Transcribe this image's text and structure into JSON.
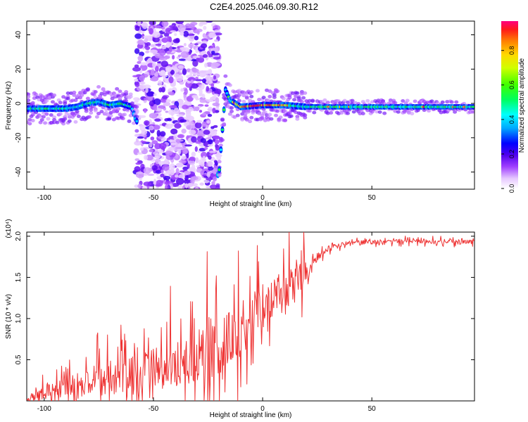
{
  "title": "C2E4.2025.046.09.30.R12",
  "chart_data": [
    {
      "type": "heatmap",
      "title": "C2E4.2025.046.09.30.R12",
      "xlabel": "Height of straight line (km)",
      "ylabel": "Frequency (Hz)",
      "xlim": [
        -108,
        97
      ],
      "ylim": [
        -50,
        48
      ],
      "xticks": [
        -100,
        -50,
        0,
        50
      ],
      "yticks": [
        -40,
        -20,
        0,
        20,
        40
      ],
      "colorbar": {
        "label": "Normalized spectral amplitude",
        "range": [
          0,
          0.97
        ],
        "ticks": [
          0.0,
          0.2,
          0.4,
          0.6,
          0.8
        ]
      },
      "ridge": {
        "x": [
          -108,
          -100,
          -90,
          -85,
          -80,
          -75,
          -70,
          -65,
          -60,
          -58,
          -20,
          -17,
          -15,
          -10,
          0,
          10,
          20,
          50,
          97
        ],
        "y": [
          -3,
          -3,
          -3,
          -2,
          0,
          1,
          -1,
          0,
          -2,
          -10,
          -42,
          8,
          2,
          -2,
          -1,
          -1,
          -2,
          -2,
          -2
        ]
      },
      "noise_band": [
        -58,
        -20
      ]
    },
    {
      "type": "line",
      "xlabel": "Height of straight line (km)",
      "ylabel": "SNR (10 * v/v)",
      "yunit": "(x10⁴)",
      "xlim": [
        -108,
        97
      ],
      "ylim": [
        0,
        2.05
      ],
      "xticks": [
        -100,
        -50,
        0,
        50
      ],
      "yticks": [
        0.5,
        1.0,
        1.5,
        2.0
      ],
      "grid": false,
      "series": [
        {
          "color": "#ee3333",
          "x": [
            -108,
            -100,
            -90,
            -80,
            -70,
            -60,
            -50,
            -40,
            -30,
            -25,
            -20,
            -15,
            -10,
            -5,
            0,
            5,
            10,
            15,
            20,
            25,
            30,
            40,
            50,
            60,
            70,
            80,
            90,
            97
          ],
          "y": [
            0.03,
            0.1,
            0.17,
            0.23,
            0.27,
            0.3,
            0.38,
            0.45,
            0.55,
            0.62,
            0.65,
            0.75,
            0.85,
            1.05,
            1.15,
            1.25,
            1.3,
            1.45,
            1.55,
            1.75,
            1.85,
            1.92,
            1.93,
            1.94,
            1.94,
            1.94,
            1.93,
            1.93
          ],
          "spread": [
            0.05,
            0.12,
            0.18,
            0.25,
            0.3,
            0.33,
            0.36,
            0.4,
            0.45,
            0.6,
            0.5,
            0.5,
            0.5,
            0.4,
            0.4,
            0.35,
            0.35,
            0.3,
            0.2,
            0.08,
            0.05,
            0.04,
            0.04,
            0.04,
            0.04,
            0.04,
            0.04,
            0.04
          ]
        }
      ]
    }
  ]
}
